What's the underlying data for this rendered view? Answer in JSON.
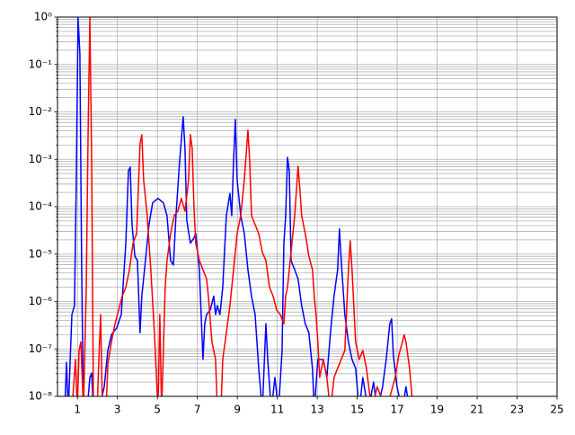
{
  "chart_data": {
    "type": "line",
    "xlim": [
      0,
      25
    ],
    "xticks": [
      1,
      3,
      5,
      7,
      9,
      11,
      13,
      15,
      17,
      19,
      21,
      23,
      25
    ],
    "ylim": [
      1e-08,
      1
    ],
    "y_scale": "log",
    "grid": true,
    "yticks": [
      {
        "value": 1e-08,
        "label": "10⁻⁸"
      },
      {
        "value": 1e-07,
        "label": "10⁻⁷"
      },
      {
        "value": 1e-06,
        "label": "10⁻⁶"
      },
      {
        "value": 1e-05,
        "label": "10⁻⁵"
      },
      {
        "value": 0.0001,
        "label": "10⁻⁴"
      },
      {
        "value": 0.001,
        "label": "10⁻³"
      },
      {
        "value": 0.01,
        "label": "10⁻²"
      },
      {
        "value": 0.1,
        "label": "10⁻¹"
      },
      {
        "value": 1,
        "label": "10⁰"
      }
    ],
    "yminorticks": [
      2e-08,
      3e-08,
      4e-08,
      5e-08,
      6e-08,
      7e-08,
      8e-08,
      9e-08,
      2e-07,
      3e-07,
      4e-07,
      5e-07,
      6e-07,
      7e-07,
      8e-07,
      9e-07,
      2e-06,
      3e-06,
      4e-06,
      5e-06,
      6e-06,
      7e-06,
      8e-06,
      9e-06,
      2e-05,
      3e-05,
      4e-05,
      5e-05,
      6e-05,
      7e-05,
      8e-05,
      9e-05,
      0.0002,
      0.0003,
      0.0004,
      0.0005,
      0.0006,
      0.0007,
      0.0008,
      0.0009,
      0.002,
      0.003,
      0.004,
      0.005,
      0.006,
      0.007,
      0.008,
      0.009,
      0.02,
      0.03,
      0.04,
      0.05,
      0.06,
      0.07,
      0.08,
      0.09,
      0.2,
      0.3,
      0.4,
      0.5,
      0.6,
      0.7,
      0.8,
      0.9
    ],
    "series": [
      {
        "color": "#0000ff",
        "x": [
          0.36,
          0.45,
          0.54,
          0.72,
          0.85,
          0.94,
          1.03,
          1.12,
          1.21,
          1.3,
          1.48,
          1.62,
          1.71,
          1.8,
          2.07,
          2.34,
          2.52,
          2.7,
          2.97,
          3.19,
          3.42,
          3.55,
          3.64,
          3.73,
          3.87,
          4.0,
          4.13,
          4.22,
          4.4,
          4.58,
          4.76,
          5.03,
          5.3,
          5.48,
          5.66,
          5.8,
          5.93,
          6.11,
          6.29,
          6.38,
          6.47,
          6.65,
          6.83,
          6.92,
          7.1,
          7.28,
          7.37,
          7.46,
          7.64,
          7.82,
          7.91,
          8.0,
          8.13,
          8.27,
          8.45,
          8.63,
          8.72,
          8.81,
          8.9,
          8.99,
          9.17,
          9.35,
          9.53,
          9.71,
          9.89,
          10.07,
          10.25,
          10.43,
          10.52,
          10.7,
          10.88,
          11.06,
          11.24,
          11.33,
          11.42,
          11.51,
          11.6,
          11.69,
          11.87,
          12.04,
          12.22,
          12.4,
          12.58,
          12.76,
          12.85,
          13.03,
          13.3,
          13.48,
          13.66,
          13.84,
          14.02,
          14.11,
          14.2,
          14.38,
          14.56,
          14.74,
          14.92,
          15.1,
          15.28,
          15.55,
          15.82,
          16.0,
          16.27,
          16.45,
          16.63,
          16.72,
          16.81,
          16.99,
          17.26,
          17.44,
          17.62
        ],
        "values": [
          5e-09,
          5.2e-08,
          5e-09,
          5.3e-07,
          8.2e-07,
          0.00037,
          0.96,
          0.167,
          4.7e-06,
          5e-09,
          5e-09,
          2.5e-08,
          3.1e-08,
          5e-09,
          5e-09,
          1.6e-08,
          9.3e-08,
          2e-07,
          2.8e-07,
          5.3e-07,
          1.7e-05,
          0.00057,
          0.00068,
          4.2e-05,
          9.1e-06,
          7.3e-06,
          2.2e-07,
          1.3e-06,
          7.3e-06,
          4.2e-05,
          0.00012,
          0.00015,
          0.00012,
          6.5e-05,
          7.3e-06,
          5.9e-06,
          6.5e-05,
          0.00089,
          0.0079,
          0.0017,
          5.2e-05,
          1.7e-05,
          2.2e-05,
          2.7e-05,
          4.7e-06,
          6e-08,
          3.4e-07,
          5.3e-07,
          6.6e-07,
          1.3e-06,
          5.3e-07,
          8.2e-07,
          5.3e-07,
          2e-06,
          6.5e-05,
          0.00019,
          6.5e-05,
          0.00089,
          0.0069,
          0.00037,
          6.5e-05,
          2.7e-05,
          4.7e-06,
          1.3e-06,
          5.3e-07,
          3.9e-08,
          5e-09,
          3.4e-07,
          6e-08,
          5e-09,
          2.5e-08,
          5e-09,
          9.3e-08,
          1.7e-05,
          6.5e-05,
          0.0011,
          0.00057,
          7.3e-06,
          4.7e-06,
          3e-06,
          8.2e-07,
          3.4e-07,
          2.2e-07,
          3.9e-08,
          5e-09,
          6e-08,
          6e-08,
          2.5e-08,
          2.2e-07,
          1.3e-06,
          4.7e-06,
          3.4e-05,
          7.3e-06,
          5.3e-07,
          1.4e-07,
          6e-08,
          3.9e-08,
          5e-09,
          2.5e-08,
          5e-09,
          2e-08,
          5e-09,
          1.6e-08,
          6e-08,
          3.4e-07,
          4.3e-07,
          7.4e-08,
          1.6e-08,
          5e-09,
          1.6e-08,
          5e-09
        ]
      },
      {
        "color": "#ff0000",
        "x": [
          0.72,
          0.9,
          0.99,
          1.08,
          1.17,
          1.3,
          1.44,
          1.53,
          1.62,
          1.71,
          1.8,
          1.98,
          2.07,
          2.16,
          2.25,
          2.43,
          2.52,
          2.7,
          2.88,
          3.06,
          3.24,
          3.42,
          3.6,
          3.78,
          3.96,
          4.13,
          4.22,
          4.31,
          4.49,
          4.67,
          4.85,
          5.03,
          5.12,
          5.21,
          5.39,
          5.48,
          5.66,
          5.84,
          6.02,
          6.2,
          6.38,
          6.56,
          6.65,
          6.74,
          6.83,
          6.92,
          7.1,
          7.28,
          7.46,
          7.55,
          7.73,
          7.91,
          8.0,
          8.18,
          8.27,
          8.45,
          8.63,
          8.81,
          8.99,
          9.17,
          9.35,
          9.53,
          9.62,
          9.71,
          9.89,
          10.07,
          10.25,
          10.43,
          10.61,
          10.79,
          10.97,
          11.15,
          11.33,
          11.42,
          11.51,
          11.69,
          11.87,
          12.04,
          12.13,
          12.22,
          12.4,
          12.58,
          12.76,
          12.85,
          12.94,
          13.03,
          13.12,
          13.3,
          13.48,
          13.66,
          13.84,
          14.02,
          14.2,
          14.38,
          14.56,
          14.65,
          14.74,
          14.92,
          15.1,
          15.28,
          15.46,
          15.73,
          16.0,
          16.45,
          16.9,
          17.08,
          17.26,
          17.35,
          17.44,
          17.62,
          17.8,
          18.07
        ],
        "values": [
          5e-09,
          6e-08,
          5e-09,
          9.3e-08,
          1.4e-07,
          5e-09,
          2e-06,
          0.0033,
          0.96,
          0.00089,
          5e-09,
          5e-09,
          6e-08,
          5.3e-07,
          5e-09,
          5e-09,
          4.8e-08,
          1.4e-07,
          3.4e-07,
          6.6e-07,
          1.3e-06,
          2e-06,
          4.7e-06,
          1.7e-05,
          2.7e-05,
          0.0021,
          0.0033,
          0.00037,
          6.5e-05,
          4.7e-06,
          2.2e-07,
          5e-09,
          5.3e-07,
          5e-09,
          2e-06,
          7.3e-06,
          2.7e-05,
          6.5e-05,
          8e-05,
          0.00015,
          8e-05,
          0.00037,
          0.0033,
          0.0017,
          0.0001,
          1.7e-05,
          7.3e-06,
          4.7e-06,
          3e-06,
          1.3e-06,
          1.4e-07,
          6e-08,
          5e-09,
          5e-09,
          6e-08,
          2.2e-07,
          8.2e-07,
          4.7e-06,
          2.7e-05,
          6.5e-05,
          0.00037,
          0.0041,
          0.00089,
          6.5e-05,
          4.2e-05,
          2.7e-05,
          1.1e-05,
          7.3e-06,
          2e-06,
          1.3e-06,
          6.6e-07,
          5.3e-07,
          3.4e-07,
          1.3e-06,
          2e-06,
          1.1e-05,
          6.5e-05,
          0.00071,
          0.00024,
          6.5e-05,
          2.7e-05,
          9.1e-06,
          4.7e-06,
          1.3e-06,
          5.3e-07,
          1.4e-07,
          2.5e-08,
          6e-08,
          2.5e-08,
          5e-09,
          2.5e-08,
          3.9e-08,
          6e-08,
          9.3e-08,
          4.7e-06,
          1.9e-05,
          4.7e-06,
          1.4e-07,
          6e-08,
          9.3e-08,
          3.9e-08,
          5e-09,
          1.6e-08,
          5e-09,
          2.5e-08,
          7.4e-08,
          1.4e-07,
          2e-07,
          1.4e-07,
          3.9e-08,
          5e-09,
          5e-09
        ]
      }
    ]
  }
}
